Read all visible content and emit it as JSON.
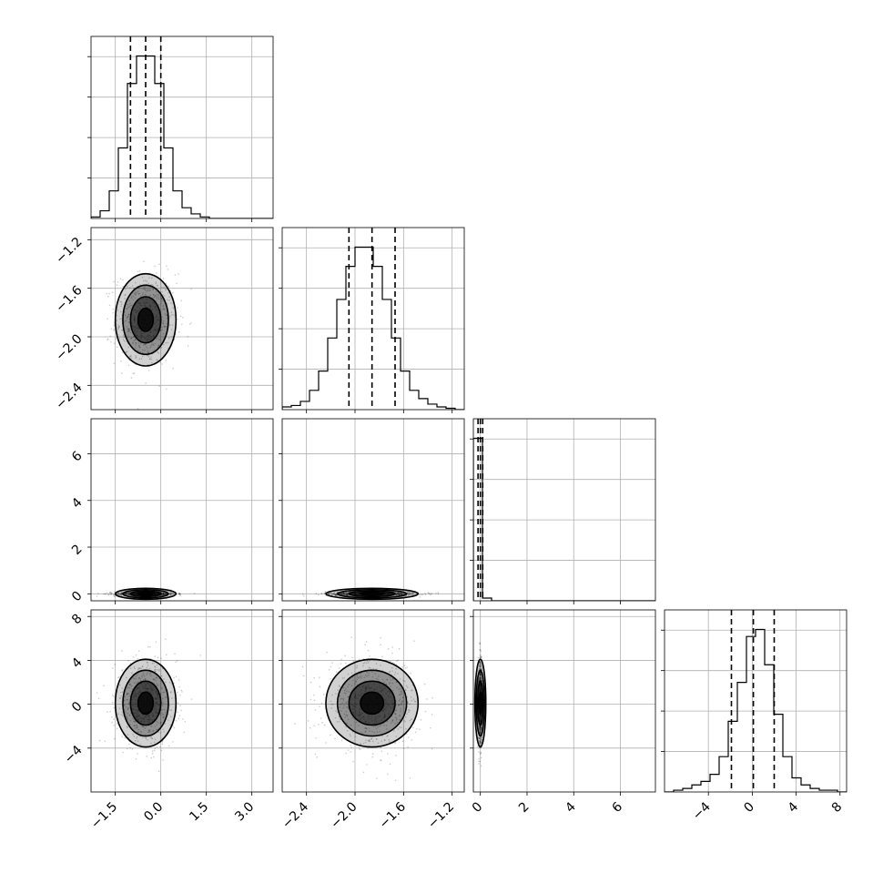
{
  "chart_data": {
    "type": "corner",
    "grid": true,
    "dimensions": [
      {
        "range": [
          -2.3,
          3.7
        ],
        "ticks": [
          -1.5,
          0.0,
          1.5,
          3.0
        ],
        "tick_labels": [
          "−1.5",
          "0.0",
          "1.5",
          "3.0"
        ],
        "quantiles": [
          -1.0,
          -0.5,
          0.0
        ],
        "hist": {
          "edges_start": -2.3,
          "bin_width": 0.3,
          "counts": [
            1,
            5,
            18,
            46,
            88,
            106,
            106,
            88,
            46,
            18,
            7,
            3,
            1,
            0,
            0,
            0,
            0,
            0,
            0,
            0
          ]
        },
        "center": -0.5,
        "spread": 0.5
      },
      {
        "range": [
          -2.6,
          -1.1
        ],
        "ticks": [
          -2.4,
          -2.0,
          -1.6,
          -1.2
        ],
        "tick_labels": [
          "−2.4",
          "−2.0",
          "−1.6",
          "−1.2"
        ],
        "quantiles": [
          -2.05,
          -1.86,
          -1.67
        ],
        "hist": {
          "edges_start": -2.6,
          "bin_width": 0.075,
          "counts": [
            2,
            3,
            6,
            14,
            28,
            52,
            80,
            104,
            118,
            118,
            104,
            80,
            52,
            28,
            14,
            8,
            4,
            2,
            1,
            0
          ]
        },
        "center": -1.86,
        "spread": 0.19
      },
      {
        "range": [
          -0.3,
          7.5
        ],
        "ticks": [
          0,
          2,
          4,
          6
        ],
        "tick_labels": [
          "0",
          "2",
          "4",
          "6"
        ],
        "quantiles": [
          -0.1,
          0.0,
          0.1
        ],
        "hist": {
          "edges_start": -0.3,
          "bin_width": 0.39,
          "counts": [
            120,
            2,
            0,
            0,
            0,
            0,
            0,
            0,
            0,
            0,
            0,
            0,
            0,
            0,
            0,
            0,
            0,
            0,
            0,
            0
          ]
        },
        "center": 0.0,
        "spread": 0.05
      },
      {
        "range": [
          -8.0,
          8.6
        ],
        "ticks": [
          -4,
          0,
          4,
          8
        ],
        "tick_labels": [
          "−4",
          "0",
          "4",
          "8"
        ],
        "quantiles": [
          -1.9,
          0.1,
          2.0
        ],
        "hist": {
          "edges_start": -8.0,
          "bin_width": 0.83,
          "counts": [
            0,
            1,
            2,
            4,
            6,
            10,
            20,
            40,
            62,
            88,
            92,
            72,
            44,
            20,
            8,
            4,
            2,
            1,
            1,
            0
          ]
        },
        "center": 0.1,
        "spread": 2.0
      }
    ],
    "y_axis_ticks_on_rows": [
      1,
      2,
      3
    ],
    "x_axis_ticks_on_bottom_row": [
      0,
      1,
      2,
      3
    ]
  }
}
